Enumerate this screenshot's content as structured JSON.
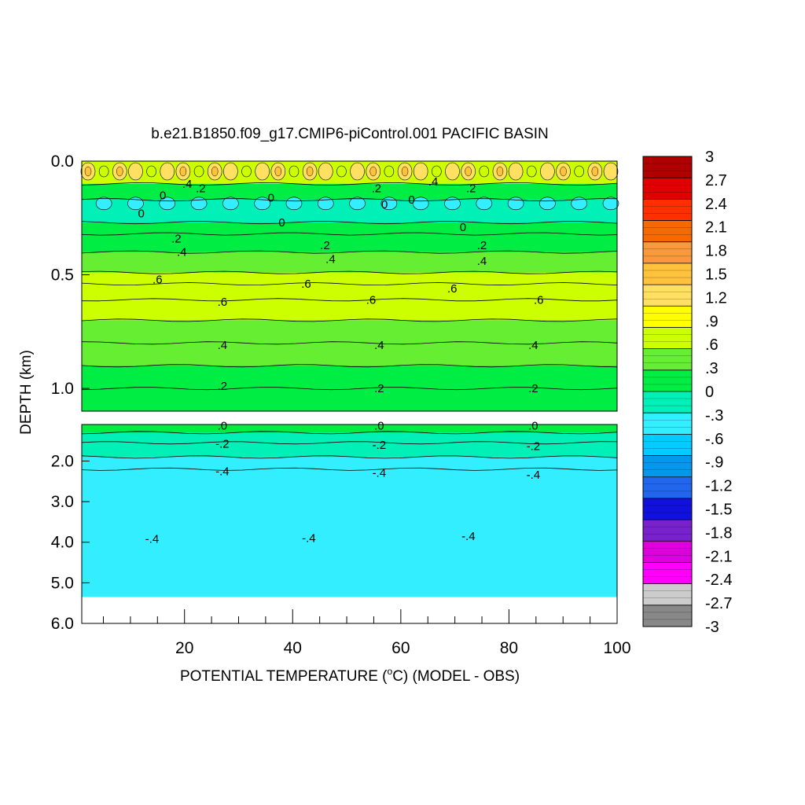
{
  "chart_data": {
    "type": "heatmap",
    "title": "b.e21.B1850.f09_g17.CMIP6-piControl.001 PACIFIC BASIN",
    "xlabel": "POTENTIAL TEMPERATURE (",
    "xlabel_degree": "o",
    "xlabel_tail": "C) (MODEL - OBS)",
    "ylabel": "DEPTH (km)",
    "xlim": [
      1,
      100
    ],
    "x_ticks": [
      20,
      40,
      60,
      80,
      100
    ],
    "upper_panel": {
      "ylim": [
        0.0,
        1.1
      ],
      "y_ticks": [
        "0.0",
        "0.5",
        "1.0"
      ],
      "bands": [
        {
          "depth": [
            0.0,
            0.1
          ],
          "value": 0.75
        },
        {
          "depth": [
            0.1,
            0.17
          ],
          "value": 0.15
        },
        {
          "depth": [
            0.17,
            0.27
          ],
          "value": -0.15
        },
        {
          "depth": [
            0.27,
            0.32
          ],
          "value": 0.1
        },
        {
          "depth": [
            0.32,
            0.4
          ],
          "value": 0.25
        },
        {
          "depth": [
            0.4,
            0.49
          ],
          "value": 0.45
        },
        {
          "depth": [
            0.49,
            0.54
          ],
          "value": 0.6
        },
        {
          "depth": [
            0.54,
            0.61
          ],
          "value": 0.67
        },
        {
          "depth": [
            0.61,
            0.7
          ],
          "value": 0.55
        },
        {
          "depth": [
            0.7,
            0.8
          ],
          "value": 0.45
        },
        {
          "depth": [
            0.8,
            0.9
          ],
          "value": 0.35
        },
        {
          "depth": [
            0.9,
            1.0
          ],
          "value": 0.25
        },
        {
          "depth": [
            1.0,
            1.1
          ],
          "value": 0.15
        }
      ],
      "contour_labels": [
        {
          "x": 20.5,
          "depth": 0.1,
          "text": ".4"
        },
        {
          "x": 23,
          "depth": 0.12,
          "text": ".2"
        },
        {
          "x": 16,
          "depth": 0.15,
          "text": "0"
        },
        {
          "x": 12,
          "depth": 0.23,
          "text": "0"
        },
        {
          "x": 36,
          "depth": 0.16,
          "text": "0"
        },
        {
          "x": 38,
          "depth": 0.27,
          "text": "0"
        },
        {
          "x": 55.5,
          "depth": 0.12,
          "text": ".2"
        },
        {
          "x": 57,
          "depth": 0.19,
          "text": "0"
        },
        {
          "x": 62,
          "depth": 0.17,
          "text": "0"
        },
        {
          "x": 66,
          "depth": 0.09,
          "text": ".4"
        },
        {
          "x": 73,
          "depth": 0.12,
          "text": ".2"
        },
        {
          "x": 71.5,
          "depth": 0.29,
          "text": "0"
        },
        {
          "x": 18.5,
          "depth": 0.34,
          "text": ".2"
        },
        {
          "x": 19.5,
          "depth": 0.4,
          "text": ".4"
        },
        {
          "x": 46,
          "depth": 0.37,
          "text": ".2"
        },
        {
          "x": 47,
          "depth": 0.43,
          "text": ".4"
        },
        {
          "x": 75,
          "depth": 0.37,
          "text": ".2"
        },
        {
          "x": 75,
          "depth": 0.44,
          "text": ".4"
        },
        {
          "x": 15,
          "depth": 0.52,
          "text": ".6"
        },
        {
          "x": 27,
          "depth": 0.62,
          "text": ".6"
        },
        {
          "x": 42.5,
          "depth": 0.54,
          "text": ".6"
        },
        {
          "x": 54.5,
          "depth": 0.61,
          "text": ".6"
        },
        {
          "x": 69.5,
          "depth": 0.56,
          "text": ".6"
        },
        {
          "x": 85.5,
          "depth": 0.61,
          "text": ".6"
        },
        {
          "x": 27,
          "depth": 0.81,
          "text": ".4"
        },
        {
          "x": 56,
          "depth": 0.81,
          "text": ".4"
        },
        {
          "x": 84.5,
          "depth": 0.81,
          "text": ".4"
        },
        {
          "x": 27,
          "depth": 0.99,
          "text": ".2"
        },
        {
          "x": 56,
          "depth": 1.0,
          "text": ".2"
        },
        {
          "x": 84.5,
          "depth": 1.0,
          "text": ".2"
        }
      ]
    },
    "lower_panel": {
      "ylim": [
        1.1,
        6.0
      ],
      "y_ticks": [
        "2.0",
        "3.0",
        "4.0",
        "5.0",
        "6.0"
      ],
      "data_bottom": 5.35,
      "bands": [
        {
          "depth": [
            1.1,
            1.3
          ],
          "value": 0.05
        },
        {
          "depth": [
            1.3,
            1.55
          ],
          "value": -0.1
        },
        {
          "depth": [
            1.55,
            1.9
          ],
          "value": -0.2
        },
        {
          "depth": [
            1.9,
            2.2
          ],
          "value": -0.3
        },
        {
          "depth": [
            2.2,
            5.35
          ],
          "value": -0.4
        }
      ],
      "contour_labels": [
        {
          "x": 27,
          "depth": 1.13,
          "text": ".0"
        },
        {
          "x": 56,
          "depth": 1.13,
          "text": ".0"
        },
        {
          "x": 84.5,
          "depth": 1.13,
          "text": ".0"
        },
        {
          "x": 27,
          "depth": 1.57,
          "text": "-.2"
        },
        {
          "x": 56,
          "depth": 1.6,
          "text": "-.2"
        },
        {
          "x": 84.5,
          "depth": 1.63,
          "text": "-.2"
        },
        {
          "x": 27,
          "depth": 2.25,
          "text": "-.4"
        },
        {
          "x": 56,
          "depth": 2.29,
          "text": "-.4"
        },
        {
          "x": 84.5,
          "depth": 2.34,
          "text": "-.4"
        },
        {
          "x": 14,
          "depth": 3.92,
          "text": "-.4"
        },
        {
          "x": 43,
          "depth": 3.9,
          "text": "-.4"
        },
        {
          "x": 72.5,
          "depth": 3.85,
          "text": "-.4"
        }
      ]
    },
    "colorbar": {
      "min": -3,
      "max": 3,
      "labels": [
        "3",
        "2.7",
        "2.4",
        "2.1",
        "1.8",
        "1.5",
        "1.2",
        ".9",
        ".6",
        ".3",
        "0",
        "-.3",
        "-.6",
        "-.9",
        "-1.2",
        "-1.5",
        "-1.8",
        "-2.1",
        "-2.4",
        "-2.7",
        "-3"
      ],
      "colors": [
        "#b00000",
        "#e00000",
        "#ff3000",
        "#f46a00",
        "#f89a3c",
        "#ffc23c",
        "#ffe060",
        "#ffff00",
        "#ccff00",
        "#66ee33",
        "#00ee44",
        "#00f0b8",
        "#33eeff",
        "#00ccff",
        "#0099ee",
        "#2266ee",
        "#1111dd",
        "#7722cc",
        "#dd00dd",
        "#ff00ff",
        "#cccccc",
        "#888888"
      ]
    }
  }
}
